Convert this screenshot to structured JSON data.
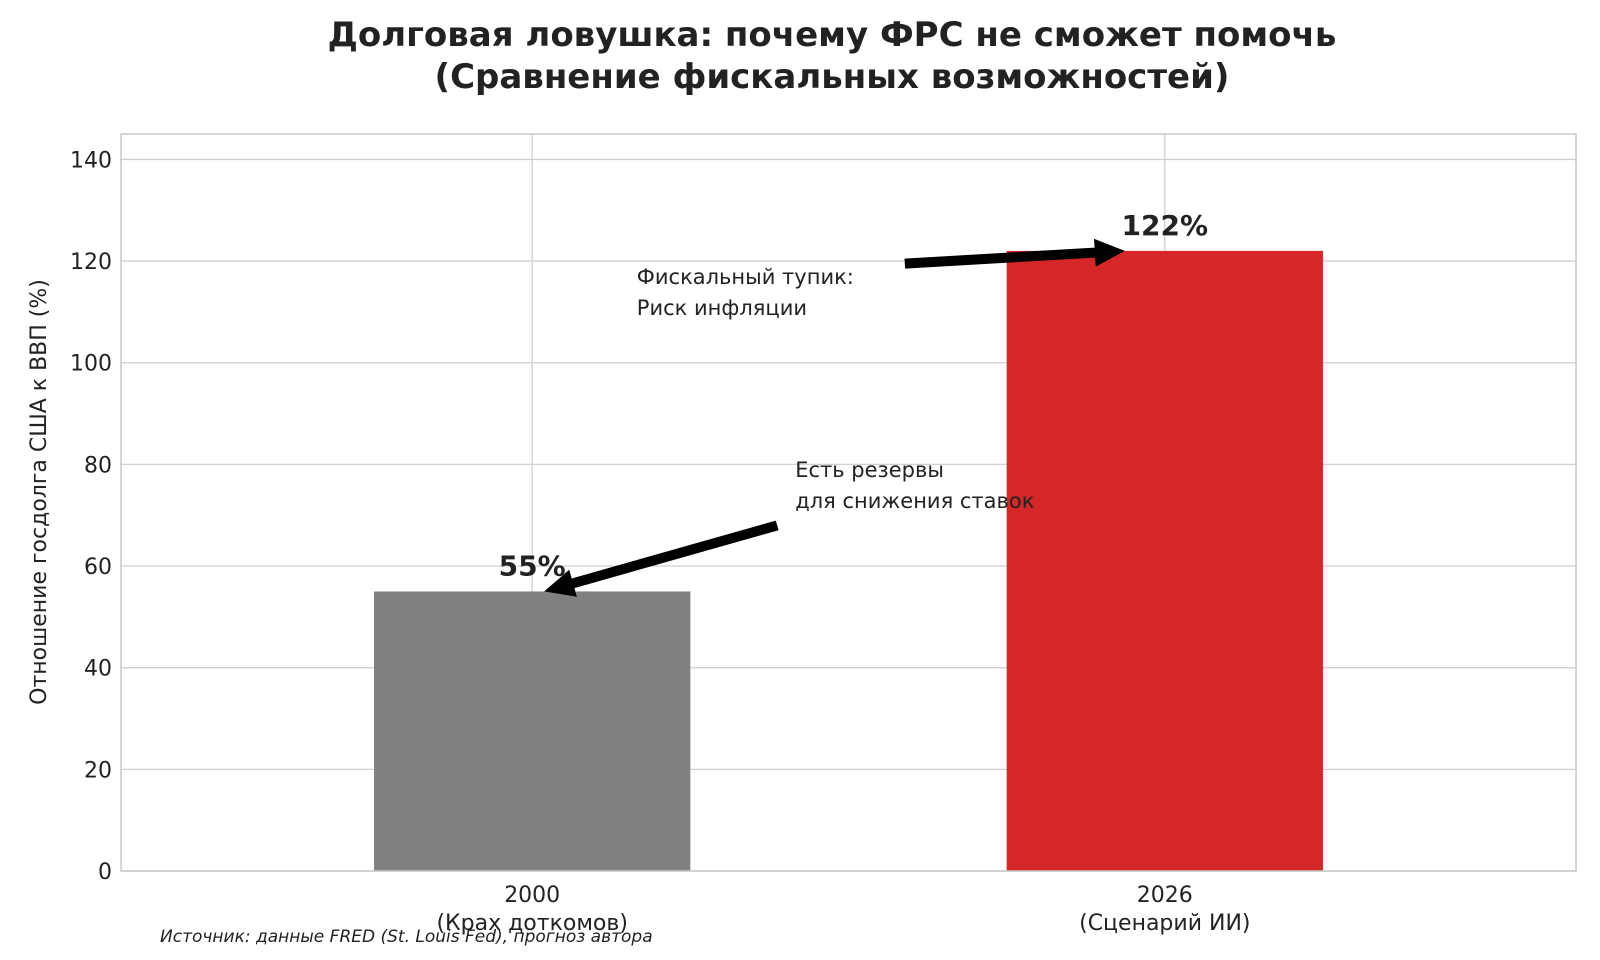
{
  "chart_data": {
    "type": "bar",
    "title": "Долговая ловушка: почему ФРС не сможет помочь",
    "subtitle": "(Сравнение фискальных возможностей)",
    "ylabel": "Отношение госдолга США к ВВП (%)",
    "xlabel": "",
    "ylim": [
      0,
      145
    ],
    "yticks": [
      0,
      20,
      40,
      60,
      80,
      100,
      120,
      140
    ],
    "grid": true,
    "categories": [
      {
        "line1": "2000",
        "line2": "(Крах доткомов)"
      },
      {
        "line1": "2026",
        "line2": "(Сценарий ИИ)"
      }
    ],
    "values": [
      55,
      122
    ],
    "value_labels": [
      "55%",
      "122%"
    ],
    "colors": [
      "#808080",
      "#d62728"
    ],
    "annotations": [
      {
        "lines": [
          "Есть резервы",
          "для снижения ставок"
        ],
        "target_index": 0
      },
      {
        "lines": [
          "Фискальный тупик:",
          "Риск инфляции"
        ],
        "target_index": 1
      }
    ],
    "source": "Источник: данные FRED (St. Louis Fed), прогноз автора"
  }
}
